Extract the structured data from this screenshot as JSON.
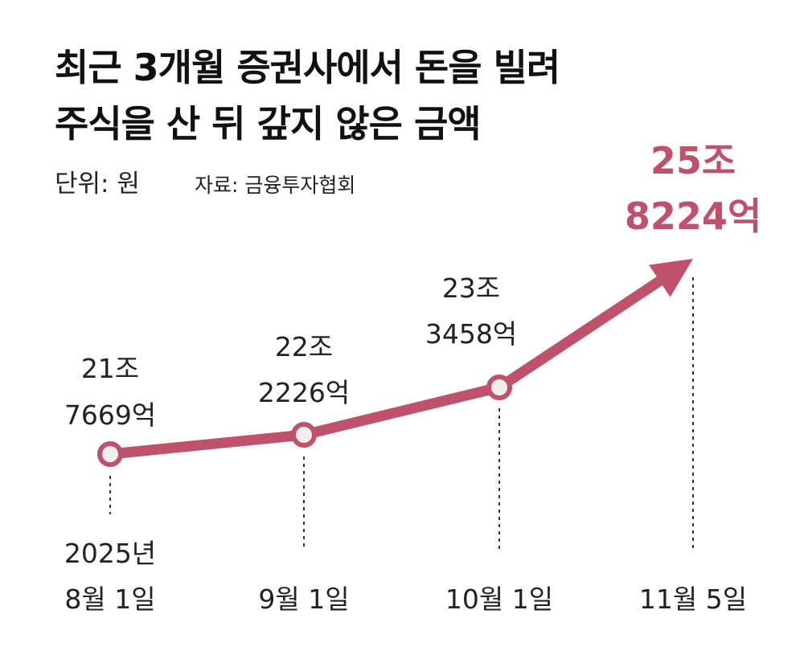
{
  "header": {
    "title_line1": "최근 3개월 증권사에서 돈을 빌려",
    "title_line2": "주식을 산 뒤 갚지 않은 금액",
    "unit": "단위: 원",
    "source": "자료: 금융투자협회"
  },
  "colors": {
    "accent": "#c0516a",
    "marker_fill": "#f2eef0",
    "text": "#222222"
  },
  "chart_data": {
    "type": "line",
    "title": "최근 3개월 증권사에서 돈을 빌려 주식을 산 뒤 갚지 않은 금액",
    "unit": "단위: 원",
    "grid": false,
    "x": [
      "2025-08-01",
      "2025-09-01",
      "2025-10-01",
      "2025-11-05"
    ],
    "x_tick_labels": [
      [
        "2025년",
        "8월 1일"
      ],
      [
        "9월 1일"
      ],
      [
        "10월 1일"
      ],
      [
        "11월 5일"
      ]
    ],
    "values": [
      21.7669,
      22.2226,
      23.3458,
      25.8224
    ],
    "value_unit": "조 원",
    "data_labels": [
      [
        "21조",
        "7669억"
      ],
      [
        "22조",
        "2226억"
      ],
      [
        "23조",
        "3458억"
      ],
      [
        "25조",
        "8224억"
      ]
    ],
    "highlight_last": true
  }
}
